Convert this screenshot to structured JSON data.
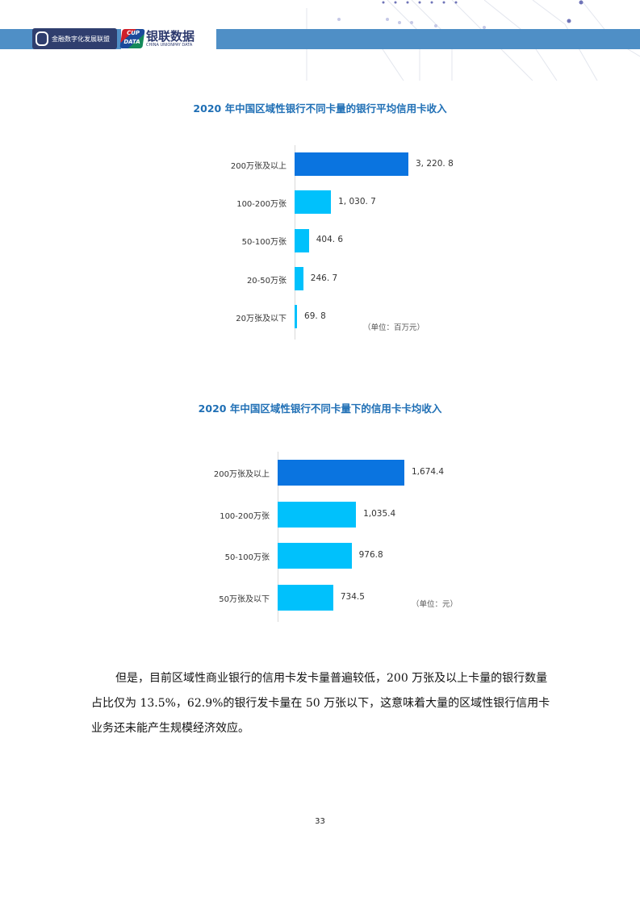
{
  "header": {
    "logo1_text": "金融数字化发展联盟",
    "logo2_badge_top": "CUP",
    "logo2_badge_bottom": "DATA",
    "logo2_cn": "银联数据",
    "logo2_en": "CHINA UNIONPAY DATA"
  },
  "chart_data": [
    {
      "type": "bar",
      "orientation": "horizontal",
      "title": "2020 年中国区域性银行不同卡量的银行平均信用卡收入",
      "categories": [
        "200万张及以上",
        "100-200万张",
        "50-100万张",
        "20-50万张",
        "20万张及以下"
      ],
      "values": [
        3220.8,
        1030.7,
        404.6,
        246.7,
        69.8
      ],
      "labels": [
        "3, 220. 8",
        "1, 030. 7",
        "404. 6",
        "246. 7",
        "69. 8"
      ],
      "unit": "（单位：百万元）",
      "colors": [
        "#0a74e0",
        "#00c1fc",
        "#00c1fc",
        "#00c1fc",
        "#00c1fc"
      ]
    },
    {
      "type": "bar",
      "orientation": "horizontal",
      "title": "2020 年中国区域性银行不同卡量下的信用卡卡均收入",
      "categories": [
        "200万张及以上",
        "100-200万张",
        "50-100万张",
        "50万张及以下"
      ],
      "values": [
        1674.4,
        1035.4,
        976.8,
        734.5
      ],
      "labels": [
        "1,674.4",
        "1,035.4",
        "976.8",
        "734.5"
      ],
      "unit": "（单位：元）",
      "colors": [
        "#0a74e0",
        "#00c1fc",
        "#00c1fc",
        "#00c1fc"
      ]
    }
  ],
  "paragraph": "但是，目前区域性商业银行的信用卡发卡量普遍较低，200 万张及以上卡量的银行数量占比仅为 13.5%，62.9%的银行发卡量在 50 万张以下，这意味着大量的区域性银行信用卡业务还未能产生规模经济效应。",
  "page_number": "33"
}
